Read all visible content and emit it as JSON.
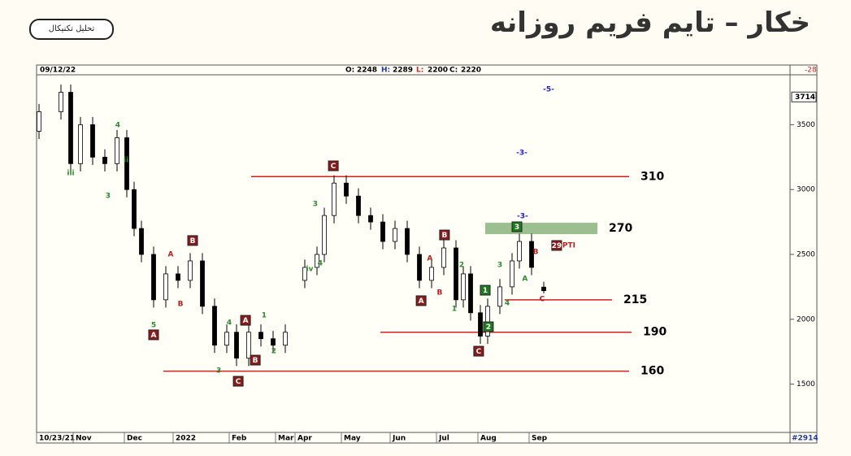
{
  "header": {
    "title": "خکار – تایم فریم روزانه",
    "button": "تحلیل تکنیکال"
  },
  "chart_data": {
    "type": "candlestick",
    "date": "09/12/22",
    "ohlc_labels": [
      "O:",
      "H:",
      "L:",
      "C:"
    ],
    "change": -28,
    "footer": "#2914",
    "last_box": 3714,
    "x": [
      1,
      10,
      14,
      18,
      23,
      28,
      33,
      37,
      40,
      43,
      48,
      53,
      58,
      63,
      68,
      73,
      78,
      82,
      87,
      92,
      97,
      102,
      110,
      115,
      118,
      122,
      127,
      132,
      137,
      142,
      147,
      152,
      157,
      162,
      167,
      172,
      175,
      178,
      182,
      185,
      190,
      195,
      198,
      203,
      208
    ],
    "open": [
      3450,
      3600,
      3750,
      3200,
      3500,
      3250,
      3200,
      3400,
      3000,
      2700,
      2500,
      2150,
      2350,
      2300,
      2450,
      2100,
      1800,
      1900,
      1700,
      1900,
      1850,
      1800,
      2300,
      2400,
      2500,
      2800,
      3050,
      2950,
      2800,
      2750,
      2600,
      2700,
      2500,
      2300,
      2400,
      2550,
      2150,
      2350,
      2050,
      1870,
      2100,
      2250,
      2450,
      2600,
      2248
    ],
    "high": [
      3660,
      3810,
      3810,
      3560,
      3560,
      3310,
      3460,
      3460,
      3060,
      2760,
      2560,
      2410,
      2410,
      2510,
      2510,
      2160,
      1960,
      1960,
      1960,
      1960,
      1910,
      1960,
      2460,
      2560,
      2860,
      3110,
      3110,
      3010,
      2860,
      2810,
      2760,
      2760,
      2560,
      2460,
      2610,
      2610,
      2410,
      2410,
      2110,
      2160,
      2310,
      2510,
      2660,
      2660,
      2289
    ],
    "low": [
      3390,
      3540,
      3140,
      3140,
      3190,
      3140,
      3140,
      2940,
      2640,
      2440,
      2090,
      2090,
      2240,
      2240,
      2040,
      1740,
      1740,
      1640,
      1640,
      1790,
      1740,
      1740,
      2240,
      2340,
      2440,
      2740,
      2890,
      2740,
      2690,
      2540,
      2540,
      2440,
      2240,
      2240,
      2340,
      2090,
      2090,
      1990,
      1810,
      1810,
      2040,
      2190,
      2390,
      2340,
      2200
    ],
    "close": [
      3600,
      3750,
      3200,
      3500,
      3250,
      3200,
      3400,
      3000,
      2700,
      2500,
      2150,
      2350,
      2300,
      2450,
      2100,
      1800,
      1900,
      1700,
      1900,
      1850,
      1800,
      1900,
      2400,
      2500,
      2800,
      3050,
      2950,
      2800,
      2750,
      2600,
      2700,
      2500,
      2300,
      2400,
      2550,
      2150,
      2350,
      2050,
      1870,
      2100,
      2250,
      2450,
      2600,
      2400,
      2220
    ],
    "xlim": [
      0,
      309
    ],
    "ylim": [
      1140,
      3885
    ],
    "xticks": [
      {
        "value": 0,
        "label": "10/23/21"
      },
      {
        "value": 15,
        "label": "Nov"
      },
      {
        "value": 36,
        "label": "Dec"
      },
      {
        "value": 56,
        "label": "2022"
      },
      {
        "value": 79,
        "label": "Feb"
      },
      {
        "value": 98,
        "label": "Mar"
      },
      {
        "value": 106,
        "label": "Apr"
      },
      {
        "value": 125,
        "label": "May"
      },
      {
        "value": 145,
        "label": "Jun"
      },
      {
        "value": 164,
        "label": "Jul"
      },
      {
        "value": 181,
        "label": "Aug"
      },
      {
        "value": 202,
        "label": "Sep"
      }
    ],
    "yticks": [
      1500,
      2000,
      2500,
      3000,
      3500
    ],
    "levels": [
      {
        "value": 3100,
        "label": "310",
        "x": [
          88,
          243
        ],
        "color": "#d62020"
      },
      {
        "value": 2700,
        "label": "270",
        "x": [
          184,
          230
        ],
        "color": "#4a8a3a"
      },
      {
        "value": 2150,
        "label": "215",
        "x": [
          192,
          236
        ],
        "color": "#d62020"
      },
      {
        "value": 1900,
        "label": "190",
        "x": [
          141,
          244
        ],
        "color": "#d62020"
      },
      {
        "value": 1600,
        "label": "160",
        "x": [
          52,
          243
        ],
        "color": "#d62020"
      }
    ],
    "annotations": [
      {
        "text": "C",
        "x": 121.7,
        "y": 3183,
        "style": "box-red"
      },
      {
        "text": "B",
        "x": 64,
        "y": 2607,
        "style": "box-red"
      },
      {
        "text": "A",
        "x": 48,
        "y": 1880,
        "style": "box-red"
      },
      {
        "text": "A",
        "x": 85.7,
        "y": 1992,
        "style": "box-red"
      },
      {
        "text": "B",
        "x": 89.7,
        "y": 1685,
        "style": "box-red"
      },
      {
        "text": "C",
        "x": 82.7,
        "y": 1522,
        "style": "box-red"
      },
      {
        "text": "B",
        "x": 167.3,
        "y": 2650,
        "style": "box-red"
      },
      {
        "text": "A",
        "x": 157.7,
        "y": 2143,
        "style": "box-red"
      },
      {
        "text": "C",
        "x": 181.3,
        "y": 1754,
        "style": "box-red"
      },
      {
        "text": "1",
        "x": 184,
        "y": 2224,
        "style": "box-green"
      },
      {
        "text": "2",
        "x": 185.3,
        "y": 1942,
        "style": "box-green"
      },
      {
        "text": "3",
        "x": 197,
        "y": 2713,
        "style": "box-green"
      },
      {
        "text": "29",
        "x": 213.3,
        "y": 2569,
        "style": "box-red"
      },
      {
        "text": "PTI",
        "x": 218.3,
        "y": 2569,
        "style": "red"
      },
      {
        "text": "A",
        "x": 55,
        "y": 2500,
        "style": "red"
      },
      {
        "text": "B",
        "x": 59,
        "y": 2118,
        "style": "red"
      },
      {
        "text": "A",
        "x": 161.3,
        "y": 2469,
        "style": "red"
      },
      {
        "text": "B",
        "x": 165.3,
        "y": 2205,
        "style": "red"
      },
      {
        "text": "B",
        "x": 204.7,
        "y": 2519,
        "style": "red"
      },
      {
        "text": "A",
        "x": 200.3,
        "y": 2312,
        "style": "green"
      },
      {
        "text": "C",
        "x": 207.3,
        "y": 2155,
        "style": "red"
      },
      {
        "text": "4",
        "x": 33.3,
        "y": 3495,
        "style": "green"
      },
      {
        "text": "ii",
        "x": 36.7,
        "y": 3227,
        "style": "green"
      },
      {
        "text": "iii",
        "x": 14,
        "y": 3127,
        "style": "green"
      },
      {
        "text": "3",
        "x": 29.3,
        "y": 2951,
        "style": "green"
      },
      {
        "text": "4",
        "x": 79,
        "y": 1974,
        "style": "green"
      },
      {
        "text": "3",
        "x": 74.7,
        "y": 1604,
        "style": "green"
      },
      {
        "text": "1",
        "x": 93.3,
        "y": 2030,
        "style": "green"
      },
      {
        "text": "2",
        "x": 97.3,
        "y": 1754,
        "style": "green"
      },
      {
        "text": "3",
        "x": 114.3,
        "y": 2888,
        "style": "green"
      },
      {
        "text": "iv",
        "x": 112,
        "y": 2387,
        "style": "green"
      },
      {
        "text": "4",
        "x": 116.3,
        "y": 2431,
        "style": "green"
      },
      {
        "text": "2",
        "x": 174.3,
        "y": 2418,
        "style": "green"
      },
      {
        "text": "1",
        "x": 171.3,
        "y": 2080,
        "style": "green"
      },
      {
        "text": "4",
        "x": 193,
        "y": 2124,
        "style": "green"
      },
      {
        "text": "3",
        "x": 190,
        "y": 2418,
        "style": "green"
      },
      {
        "text": "5",
        "x": 48,
        "y": 1955,
        "style": "green"
      },
      {
        "text": "-5-",
        "x": 210,
        "y": 3772,
        "style": "blue"
      },
      {
        "text": "-3-",
        "x": 199,
        "y": 3283,
        "style": "blue"
      },
      {
        "text": "-3-",
        "x": 199.3,
        "y": 2794,
        "style": "blue"
      }
    ]
  }
}
